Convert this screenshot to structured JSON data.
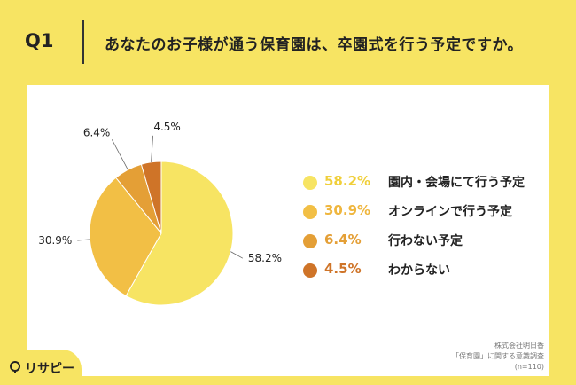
{
  "header": {
    "q_label": "Q1",
    "question": "あなたのお子様が通う保育園は、卒園式を行う予定ですか。"
  },
  "chart_data": {
    "type": "pie",
    "categories": [
      "園内・会場にて行う予定",
      "オンラインで行う予定",
      "行わない予定",
      "わからない"
    ],
    "values": [
      58.2,
      30.9,
      6.4,
      4.5
    ],
    "value_labels": [
      "58.2%",
      "30.9%",
      "6.4%",
      "4.5%"
    ],
    "colors": [
      "#f7e463",
      "#f2bf45",
      "#e49f36",
      "#cf7428"
    ],
    "legend_value_colors": [
      "#f0cf3a",
      "#efb63e",
      "#e49f36",
      "#cf7428"
    ],
    "legend_position": "right"
  },
  "source": {
    "line1": "株式会社明日香",
    "line2": "「保育園」に関する意識調査",
    "line3": "(n=110)"
  },
  "logo": {
    "text": "リサピー"
  }
}
